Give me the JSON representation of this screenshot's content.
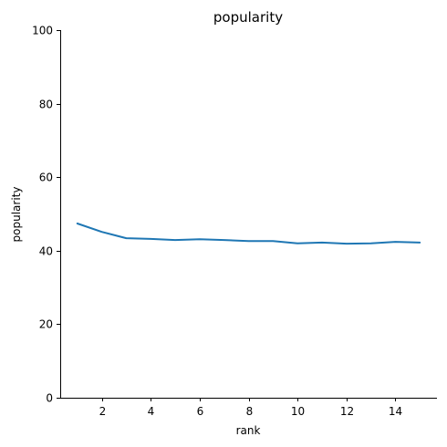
{
  "chart_data": {
    "type": "line",
    "title": "popularity",
    "xlabel": "rank",
    "ylabel": "popularity",
    "x": [
      1,
      2,
      3,
      4,
      5,
      6,
      7,
      8,
      9,
      10,
      11,
      12,
      13,
      14,
      15
    ],
    "series": [
      {
        "values": [
          47.4,
          45.1,
          43.4,
          43.2,
          42.9,
          43.1,
          42.9,
          42.6,
          42.6,
          42.0,
          42.2,
          41.9,
          42.0,
          42.4,
          42.2
        ],
        "color": "#1f77b4"
      }
    ],
    "xlim": [
      0.3,
      15.7
    ],
    "ylim": [
      0,
      100
    ],
    "xticks": [
      2,
      4,
      6,
      8,
      10,
      12,
      14
    ],
    "yticks": [
      0,
      20,
      40,
      60,
      80,
      100
    ],
    "grid": false,
    "legend": "none"
  }
}
